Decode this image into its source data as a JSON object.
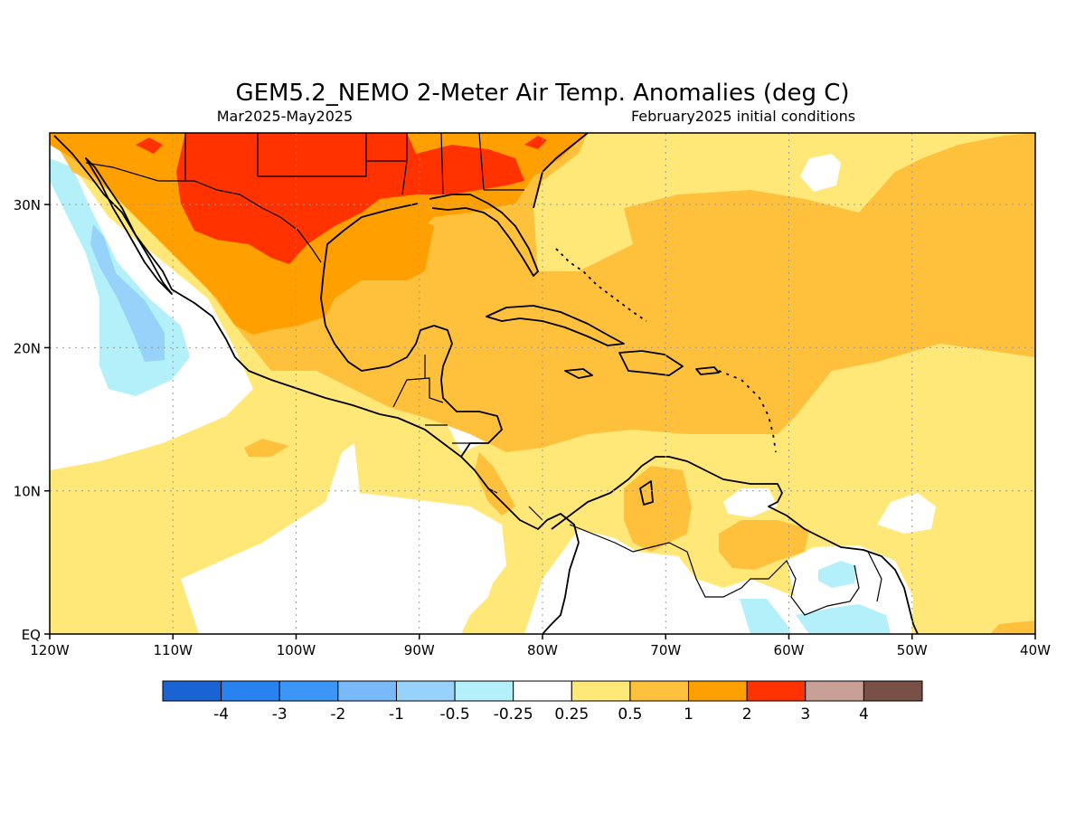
{
  "title": "GEM5.2_NEMO 2-Meter Air Temp. Anomalies (deg C)",
  "subtitle_left": "Mar2025-May2025",
  "subtitle_right": "February2025 initial conditions",
  "map": {
    "lon_range": [
      -120,
      -40
    ],
    "lat_range": [
      0,
      35
    ],
    "x_ticks": [
      {
        "lon": -120,
        "label": "120W"
      },
      {
        "lon": -110,
        "label": "110W"
      },
      {
        "lon": -100,
        "label": "100W"
      },
      {
        "lon": -90,
        "label": "90W"
      },
      {
        "lon": -80,
        "label": "80W"
      },
      {
        "lon": -70,
        "label": "70W"
      },
      {
        "lon": -60,
        "label": "60W"
      },
      {
        "lon": -50,
        "label": "50W"
      },
      {
        "lon": -40,
        "label": "40W"
      }
    ],
    "y_ticks": [
      {
        "lat": 0,
        "label": "EQ"
      },
      {
        "lat": 10,
        "label": "10N"
      },
      {
        "lat": 20,
        "label": "20N"
      },
      {
        "lat": 30,
        "label": "30N"
      }
    ],
    "grid": true
  },
  "colorbar": {
    "colors": [
      "#1964d2",
      "#2882f0",
      "#3c96f5",
      "#78b9fa",
      "#96d2fa",
      "#b4f0fa",
      "#ffffff",
      "#ffe878",
      "#ffc03c",
      "#ffa000",
      "#ff3200",
      "#c8a096",
      "#785046"
    ],
    "labels": [
      "-4",
      "-3",
      "-2",
      "-1",
      "-0.5",
      "-0.25",
      "0.25",
      "0.5",
      "1",
      "2",
      "3",
      "4"
    ]
  }
}
